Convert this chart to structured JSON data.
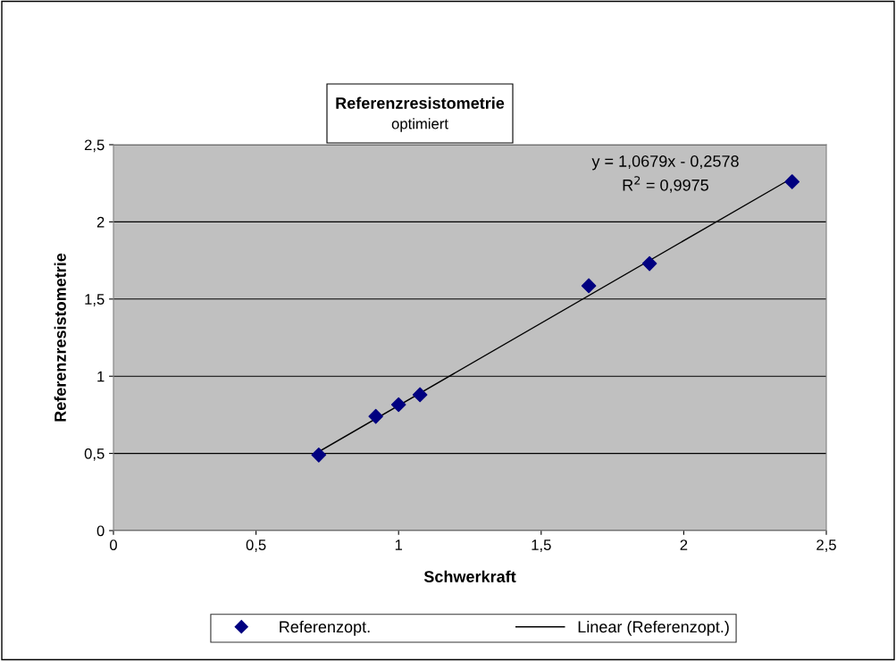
{
  "chart_data": {
    "type": "scatter",
    "title": "Referenzresistometrie",
    "subtitle": "optimiert",
    "xlabel": "Schwerkraft",
    "ylabel": "Referenzresistometrie",
    "series": [
      {
        "name": "Referenzopt.",
        "color": "#000080",
        "marker": "diamond",
        "x": [
          0.72,
          0.92,
          1.0,
          1.075,
          1.667,
          1.88,
          2.38
        ],
        "values": [
          0.49,
          0.74,
          0.816,
          0.88,
          1.586,
          1.73,
          2.26
        ]
      },
      {
        "name": "Linear (Referenzopt.)",
        "type": "line",
        "color": "#000000",
        "line_style": "solid",
        "marker": "none",
        "x": [
          0.72,
          2.38
        ],
        "values": [
          0.511,
          2.284
        ]
      }
    ],
    "annotations": [
      "y = 1,0679x - 0,2578",
      "R$^{2}$ = 0,9975"
    ],
    "xlim": [
      0,
      2.5
    ],
    "ylim": [
      0,
      2.5
    ],
    "xticks": [
      0,
      {
        "value": 0.5,
        "label": "0,5"
      },
      1,
      {
        "value": 1.5,
        "label": "1,5"
      },
      2,
      {
        "value": 2.5,
        "label": "2,5"
      }
    ],
    "yticks": [
      0,
      {
        "value": 0.5,
        "label": "0,5"
      },
      1,
      {
        "value": 1.5,
        "label": "1,5"
      },
      2,
      {
        "value": 2.5,
        "label": "2,5"
      }
    ],
    "grid": "y",
    "legend": "bottom"
  }
}
